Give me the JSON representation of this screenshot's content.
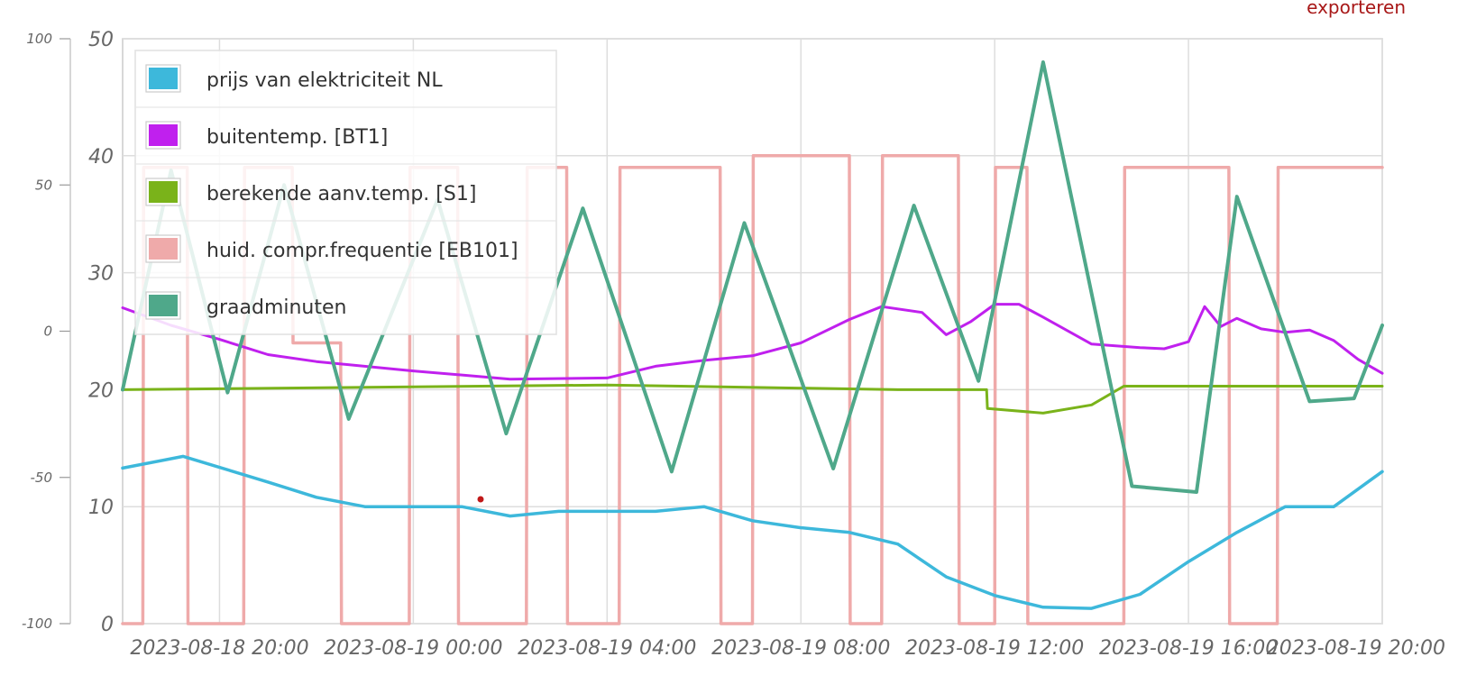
{
  "toolbar": {
    "export_label": "exporteren"
  },
  "chart_data": {
    "type": "line",
    "title": "",
    "xlabel": "",
    "ylabel": "",
    "x_range": [
      "2023-08-18 18:00",
      "2023-08-19 20:00"
    ],
    "grid": true,
    "legend_position": "top-left",
    "axes": {
      "left": {
        "min": -100,
        "max": 100,
        "ticks": [
          100,
          50,
          0,
          -50,
          -100
        ]
      },
      "right": {
        "min": 0,
        "max": 50,
        "ticks": [
          50,
          40,
          30,
          20,
          10,
          0
        ]
      }
    },
    "x_ticks": [
      "2023-08-18 20:00",
      "2023-08-19 00:00",
      "2023-08-19 04:00",
      "2023-08-19 08:00",
      "2023-08-19 12:00",
      "2023-08-19 16:00",
      "2023-08-19 20:00"
    ],
    "series": [
      {
        "name": "prijs van elektriciteit NL",
        "color": "#3db8db",
        "axis": "right",
        "x": [
          "2023-08-18 18:00",
          "2023-08-18 19:15",
          "2023-08-18 21:00",
          "2023-08-18 22:00",
          "2023-08-18 23:00",
          "2023-08-19 00:00",
          "2023-08-19 01:00",
          "2023-08-19 02:00",
          "2023-08-19 03:00",
          "2023-08-19 04:00",
          "2023-08-19 05:00",
          "2023-08-19 06:00",
          "2023-08-19 07:00",
          "2023-08-19 08:00",
          "2023-08-19 09:00",
          "2023-08-19 10:00",
          "2023-08-19 11:00",
          "2023-08-19 12:00",
          "2023-08-19 13:00",
          "2023-08-19 14:00",
          "2023-08-19 15:00",
          "2023-08-19 16:00",
          "2023-08-19 17:00",
          "2023-08-19 18:00",
          "2023-08-19 19:00",
          "2023-08-19 20:00"
        ],
        "y": [
          13.3,
          14.3,
          12.1,
          10.8,
          10.0,
          10.0,
          10.0,
          9.2,
          9.6,
          9.6,
          9.6,
          10.0,
          8.8,
          8.2,
          7.8,
          6.8,
          4.0,
          2.4,
          1.4,
          1.3,
          2.5,
          5.3,
          7.8,
          10.0,
          10.0,
          13.0
        ]
      },
      {
        "name": "buitentemp. [BT1]",
        "color": "#c020ee",
        "axis": "right",
        "x": [
          "2023-08-18 18:00",
          "2023-08-18 19:00",
          "2023-08-18 20:00",
          "2023-08-18 21:00",
          "2023-08-18 22:00",
          "2023-08-19 00:00",
          "2023-08-19 02:00",
          "2023-08-19 04:00",
          "2023-08-19 05:00",
          "2023-08-19 06:00",
          "2023-08-19 07:00",
          "2023-08-19 08:00",
          "2023-08-19 09:00",
          "2023-08-19 09:40",
          "2023-08-19 10:30",
          "2023-08-19 11:00",
          "2023-08-19 11:30",
          "2023-08-19 12:00",
          "2023-08-19 12:30",
          "2023-08-19 13:00",
          "2023-08-19 14:00",
          "2023-08-19 15:00",
          "2023-08-19 15:30",
          "2023-08-19 16:00",
          "2023-08-19 16:20",
          "2023-08-19 16:40",
          "2023-08-19 17:00",
          "2023-08-19 17:30",
          "2023-08-19 18:00",
          "2023-08-19 18:30",
          "2023-08-19 19:00",
          "2023-08-19 19:30",
          "2023-08-19 20:00"
        ],
        "y": [
          27.0,
          25.5,
          24.3,
          23.0,
          22.4,
          21.6,
          20.9,
          21.0,
          22.0,
          22.5,
          22.9,
          24.0,
          26.0,
          27.1,
          26.6,
          24.7,
          25.8,
          27.3,
          27.3,
          26.2,
          23.9,
          23.6,
          23.5,
          24.1,
          27.1,
          25.4,
          26.1,
          25.2,
          24.9,
          25.1,
          24.2,
          22.6,
          21.4
        ]
      },
      {
        "name": "berekende aanv.temp. [S1]",
        "color": "#7ab31a",
        "axis": "right",
        "x": [
          "2023-08-18 18:00",
          "2023-08-19 04:00",
          "2023-08-19 10:00",
          "2023-08-19 11:50",
          "2023-08-19 11:51",
          "2023-08-19 13:00",
          "2023-08-19 14:00",
          "2023-08-19 14:40",
          "2023-08-19 14:41",
          "2023-08-19 20:00"
        ],
        "y": [
          20.0,
          20.4,
          20.0,
          20.0,
          18.4,
          18.0,
          18.7,
          20.3,
          20.3,
          20.3
        ]
      },
      {
        "name": "huid. compr.frequentie [EB101]",
        "color": "#efaaaa",
        "axis": "right",
        "x": [
          "2023-08-18 18:00",
          "2023-08-18 18:25",
          "2023-08-18 18:26",
          "2023-08-18 19:20",
          "2023-08-18 19:21",
          "2023-08-18 20:30",
          "2023-08-18 20:31",
          "2023-08-18 21:30",
          "2023-08-18 21:31",
          "2023-08-18 22:30",
          "2023-08-18 22:31",
          "2023-08-18 23:55",
          "2023-08-18 23:56",
          "2023-08-19 00:55",
          "2023-08-19 00:56",
          "2023-08-19 02:20",
          "2023-08-19 02:21",
          "2023-08-19 03:10",
          "2023-08-19 03:11",
          "2023-08-19 04:15",
          "2023-08-19 04:16",
          "2023-08-19 06:20",
          "2023-08-19 06:21",
          "2023-08-19 07:00",
          "2023-08-19 07:01",
          "2023-08-19 09:00",
          "2023-08-19 09:01",
          "2023-08-19 09:40",
          "2023-08-19 09:41",
          "2023-08-19 11:15",
          "2023-08-19 11:16",
          "2023-08-19 12:00",
          "2023-08-19 12:01",
          "2023-08-19 12:40",
          "2023-08-19 12:41",
          "2023-08-19 14:40",
          "2023-08-19 14:41",
          "2023-08-19 16:50",
          "2023-08-19 16:51",
          "2023-08-19 17:50",
          "2023-08-19 17:51",
          "2023-08-19 20:00"
        ],
        "y": [
          0,
          0,
          39,
          39,
          0,
          0,
          39,
          39,
          24,
          24,
          0,
          0,
          39,
          39,
          0,
          0,
          39,
          39,
          0,
          0,
          39,
          39,
          0,
          0,
          40,
          40,
          0,
          0,
          40,
          40,
          0,
          0,
          39,
          39,
          0,
          0,
          39,
          39,
          0,
          0,
          39,
          39
        ]
      },
      {
        "name": "graadminuten",
        "color": "#4fa88a",
        "axis": "left",
        "x": [
          "2023-08-18 18:00",
          "2023-08-18 19:00",
          "2023-08-18 20:10",
          "2023-08-18 21:20",
          "2023-08-18 22:40",
          "2023-08-19 00:30",
          "2023-08-19 01:55",
          "2023-08-19 03:30",
          "2023-08-19 05:20",
          "2023-08-19 06:50",
          "2023-08-19 08:40",
          "2023-08-19 10:20",
          "2023-08-19 11:40",
          "2023-08-19 13:00",
          "2023-08-19 14:50",
          "2023-08-19 16:10",
          "2023-08-19 17:00",
          "2023-08-19 18:30",
          "2023-08-19 19:25",
          "2023-08-19 20:00"
        ],
        "y": [
          -20,
          55,
          -21,
          50,
          -30,
          45,
          -35,
          42,
          -48,
          37,
          -47,
          43,
          -17,
          92,
          -53,
          -55,
          46,
          -24,
          -23,
          2
        ]
      }
    ]
  }
}
